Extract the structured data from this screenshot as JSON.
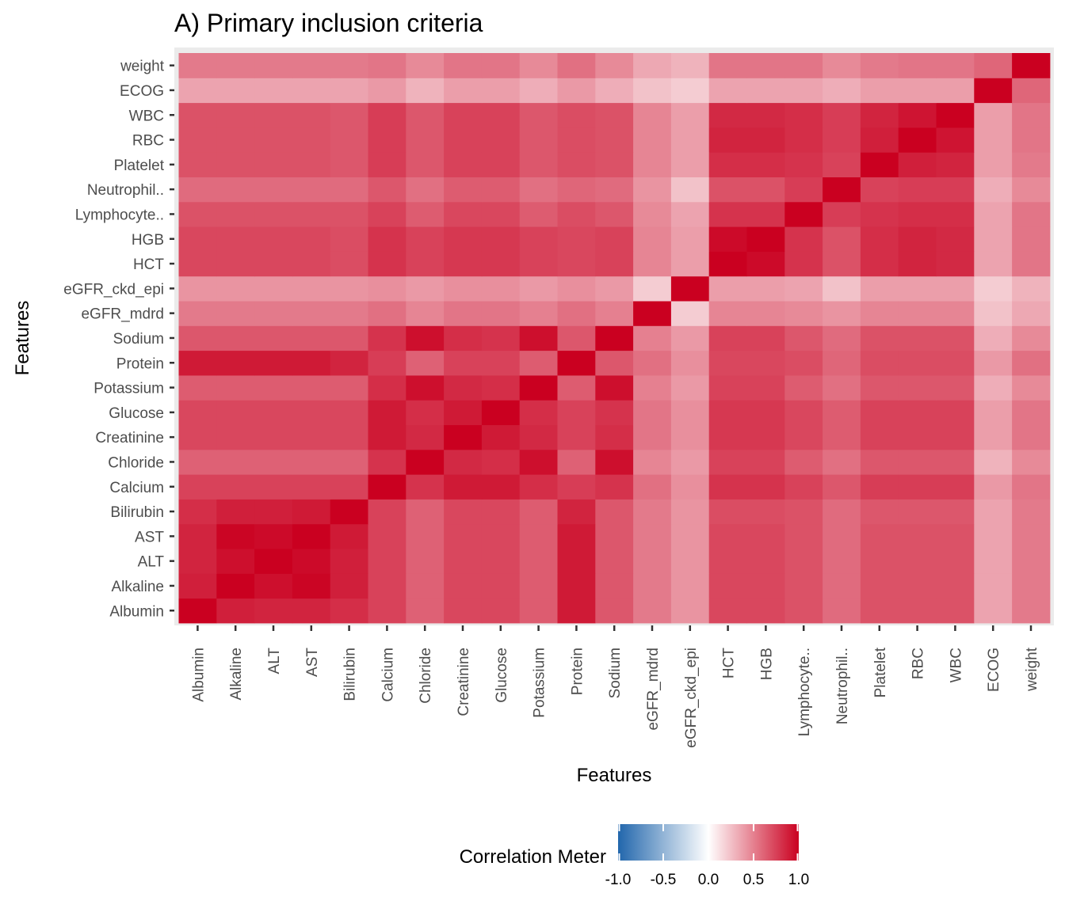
{
  "chart_data": {
    "type": "heatmap",
    "title": "A) Primary inclusion criteria",
    "xlabel": "Features",
    "ylabel": "Features",
    "x_categories": [
      "Albumin",
      "Alkaline",
      "ALT",
      "AST",
      "Bilirubin",
      "Calcium",
      "Chloride",
      "Creatinine",
      "Glucose",
      "Potassium",
      "Protein",
      "Sodium",
      "eGFR_mdrd",
      "eGFR_ckd_epi",
      "HCT",
      "HGB",
      "Lymphocyte..",
      "Neutrophil..",
      "Platelet",
      "RBC",
      "WBC",
      "ECOG",
      "weight"
    ],
    "y_categories": [
      "Albumin",
      "Alkaline",
      "ALT",
      "AST",
      "Bilirubin",
      "Calcium",
      "Chloride",
      "Creatinine",
      "Glucose",
      "Potassium",
      "Protein",
      "Sodium",
      "eGFR_mdrd",
      "eGFR_ckd_epi",
      "HCT",
      "HGB",
      "Lymphocyte..",
      "Neutrophil..",
      "Platelet",
      "RBC",
      "WBC",
      "ECOG",
      "weight"
    ],
    "values": [
      [
        1.0,
        0.88,
        0.86,
        0.86,
        0.82,
        0.74,
        0.62,
        0.72,
        0.72,
        0.64,
        0.9,
        0.66,
        0.52,
        0.42,
        0.72,
        0.72,
        0.68,
        0.58,
        0.68,
        0.68,
        0.68,
        0.36,
        0.52
      ],
      [
        0.88,
        1.0,
        0.94,
        0.98,
        0.88,
        0.74,
        0.62,
        0.72,
        0.72,
        0.64,
        0.9,
        0.66,
        0.52,
        0.42,
        0.72,
        0.72,
        0.68,
        0.58,
        0.68,
        0.68,
        0.68,
        0.36,
        0.52
      ],
      [
        0.86,
        0.94,
        1.0,
        0.96,
        0.88,
        0.74,
        0.62,
        0.72,
        0.72,
        0.64,
        0.9,
        0.66,
        0.52,
        0.42,
        0.72,
        0.72,
        0.68,
        0.58,
        0.68,
        0.68,
        0.68,
        0.36,
        0.52
      ],
      [
        0.86,
        0.98,
        0.96,
        1.0,
        0.9,
        0.74,
        0.62,
        0.72,
        0.72,
        0.64,
        0.9,
        0.66,
        0.52,
        0.42,
        0.72,
        0.72,
        0.68,
        0.58,
        0.68,
        0.68,
        0.68,
        0.36,
        0.52
      ],
      [
        0.82,
        0.88,
        0.88,
        0.9,
        1.0,
        0.74,
        0.62,
        0.72,
        0.72,
        0.64,
        0.86,
        0.66,
        0.52,
        0.42,
        0.7,
        0.7,
        0.68,
        0.58,
        0.66,
        0.66,
        0.66,
        0.36,
        0.52
      ],
      [
        0.74,
        0.74,
        0.74,
        0.74,
        0.74,
        1.0,
        0.8,
        0.9,
        0.9,
        0.82,
        0.76,
        0.8,
        0.56,
        0.44,
        0.8,
        0.8,
        0.74,
        0.66,
        0.76,
        0.76,
        0.76,
        0.4,
        0.54
      ],
      [
        0.62,
        0.62,
        0.62,
        0.62,
        0.62,
        0.8,
        1.0,
        0.84,
        0.82,
        0.94,
        0.62,
        0.94,
        0.48,
        0.4,
        0.74,
        0.74,
        0.64,
        0.56,
        0.66,
        0.66,
        0.66,
        0.3,
        0.46
      ],
      [
        0.72,
        0.72,
        0.72,
        0.72,
        0.72,
        0.9,
        0.84,
        1.0,
        0.9,
        0.84,
        0.74,
        0.82,
        0.54,
        0.44,
        0.78,
        0.78,
        0.72,
        0.64,
        0.74,
        0.74,
        0.74,
        0.38,
        0.54
      ],
      [
        0.72,
        0.72,
        0.72,
        0.72,
        0.72,
        0.9,
        0.82,
        0.9,
        1.0,
        0.82,
        0.74,
        0.8,
        0.54,
        0.44,
        0.78,
        0.78,
        0.72,
        0.64,
        0.74,
        0.74,
        0.74,
        0.38,
        0.54
      ],
      [
        0.64,
        0.64,
        0.64,
        0.64,
        0.64,
        0.82,
        0.94,
        0.84,
        0.82,
        1.0,
        0.64,
        0.94,
        0.5,
        0.4,
        0.74,
        0.74,
        0.64,
        0.56,
        0.66,
        0.66,
        0.66,
        0.32,
        0.46
      ],
      [
        0.9,
        0.9,
        0.9,
        0.9,
        0.86,
        0.76,
        0.62,
        0.74,
        0.74,
        0.64,
        1.0,
        0.66,
        0.56,
        0.44,
        0.72,
        0.72,
        0.7,
        0.6,
        0.7,
        0.7,
        0.7,
        0.4,
        0.56
      ],
      [
        0.66,
        0.66,
        0.66,
        0.66,
        0.66,
        0.8,
        0.94,
        0.82,
        0.8,
        0.94,
        0.66,
        1.0,
        0.5,
        0.4,
        0.74,
        0.74,
        0.66,
        0.58,
        0.68,
        0.68,
        0.68,
        0.32,
        0.46
      ],
      [
        0.52,
        0.52,
        0.52,
        0.52,
        0.52,
        0.56,
        0.48,
        0.54,
        0.54,
        0.5,
        0.56,
        0.5,
        1.0,
        0.2,
        0.48,
        0.48,
        0.46,
        0.42,
        0.48,
        0.48,
        0.48,
        0.24,
        0.34
      ],
      [
        0.42,
        0.42,
        0.42,
        0.42,
        0.42,
        0.44,
        0.4,
        0.44,
        0.44,
        0.4,
        0.44,
        0.4,
        0.2,
        1.0,
        0.38,
        0.38,
        0.36,
        0.24,
        0.38,
        0.38,
        0.38,
        0.2,
        0.3
      ],
      [
        0.72,
        0.72,
        0.72,
        0.72,
        0.7,
        0.8,
        0.74,
        0.78,
        0.78,
        0.74,
        0.72,
        0.74,
        0.48,
        0.38,
        1.0,
        0.96,
        0.8,
        0.68,
        0.82,
        0.86,
        0.84,
        0.36,
        0.54
      ],
      [
        0.72,
        0.72,
        0.72,
        0.72,
        0.7,
        0.8,
        0.74,
        0.78,
        0.78,
        0.74,
        0.72,
        0.74,
        0.48,
        0.38,
        0.96,
        1.0,
        0.8,
        0.68,
        0.82,
        0.86,
        0.84,
        0.36,
        0.54
      ],
      [
        0.68,
        0.68,
        0.68,
        0.68,
        0.68,
        0.74,
        0.64,
        0.72,
        0.72,
        0.64,
        0.7,
        0.66,
        0.46,
        0.36,
        0.8,
        0.8,
        1.0,
        0.76,
        0.8,
        0.82,
        0.82,
        0.36,
        0.54
      ],
      [
        0.58,
        0.58,
        0.58,
        0.58,
        0.58,
        0.66,
        0.56,
        0.64,
        0.64,
        0.56,
        0.6,
        0.58,
        0.42,
        0.24,
        0.68,
        0.68,
        0.76,
        1.0,
        0.74,
        0.76,
        0.76,
        0.32,
        0.46
      ],
      [
        0.68,
        0.68,
        0.68,
        0.68,
        0.66,
        0.76,
        0.66,
        0.74,
        0.74,
        0.66,
        0.7,
        0.68,
        0.48,
        0.38,
        0.82,
        0.82,
        0.8,
        0.74,
        1.0,
        0.88,
        0.86,
        0.38,
        0.52
      ],
      [
        0.68,
        0.68,
        0.68,
        0.68,
        0.66,
        0.76,
        0.66,
        0.74,
        0.74,
        0.66,
        0.7,
        0.68,
        0.48,
        0.38,
        0.86,
        0.86,
        0.82,
        0.76,
        0.88,
        1.0,
        0.92,
        0.38,
        0.54
      ],
      [
        0.68,
        0.68,
        0.68,
        0.68,
        0.66,
        0.76,
        0.66,
        0.74,
        0.74,
        0.66,
        0.7,
        0.68,
        0.48,
        0.38,
        0.84,
        0.84,
        0.82,
        0.76,
        0.86,
        0.92,
        1.0,
        0.38,
        0.54
      ],
      [
        0.36,
        0.36,
        0.36,
        0.36,
        0.36,
        0.4,
        0.3,
        0.38,
        0.38,
        0.32,
        0.4,
        0.32,
        0.24,
        0.2,
        0.36,
        0.36,
        0.36,
        0.32,
        0.38,
        0.38,
        0.38,
        1.0,
        0.6
      ],
      [
        0.52,
        0.52,
        0.52,
        0.52,
        0.52,
        0.54,
        0.46,
        0.54,
        0.54,
        0.46,
        0.56,
        0.46,
        0.34,
        0.3,
        0.54,
        0.54,
        0.54,
        0.46,
        0.52,
        0.54,
        0.54,
        0.6,
        1.0
      ]
    ],
    "scale": {
      "low": -1.0,
      "high": 1.0,
      "colors": [
        "#2166ac",
        "#ffffff",
        "#ca0020"
      ]
    },
    "legend": {
      "title": "Correlation Meter",
      "position": "bottom",
      "ticks": [
        "-1.0",
        "-0.5",
        "0.0",
        "0.5",
        "1.0"
      ]
    },
    "panel_background": "#ebebeb",
    "grid": true
  }
}
